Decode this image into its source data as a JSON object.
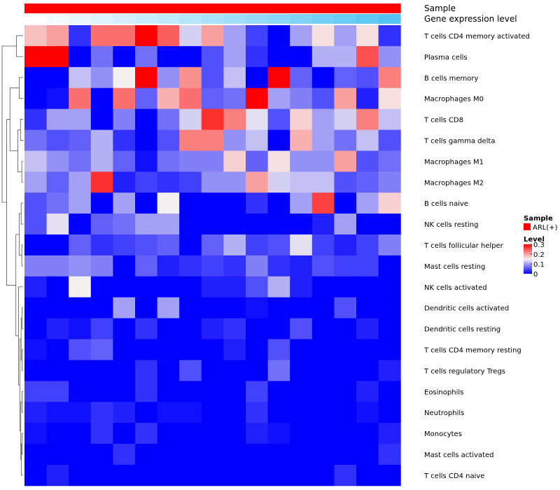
{
  "chart_data": {
    "type": "heatmap",
    "title": "",
    "annotation_tracks": [
      "Sample",
      "Gene expression level"
    ],
    "rows": [
      "T cells CD4 memory activated",
      "Plasma cells",
      "B cells memory",
      "Macrophages M0",
      "T cells CD8",
      "T cells gamma delta",
      "Macrophages M1",
      "Macrophages M2",
      "B cells naive",
      "NK cells resting",
      "T cells follicular helper",
      "Mast cells resting",
      "NK cells activated",
      "Dendritic cells activated",
      "Dendritic cells resting",
      "T cells CD4 memory resting",
      "T cells regulatory  Tregs",
      "Eosinophils",
      "Neutrophils",
      "Monocytes",
      "Mast cells activated",
      "T cells CD4 naive"
    ],
    "n_samples": 17,
    "values": [
      [
        0.18,
        0.2,
        0.03,
        0.23,
        0.23,
        0.3,
        0.24,
        0.13,
        0.2,
        0.1,
        0.04,
        0.0,
        0.1,
        0.16,
        0.1,
        0.16,
        0.03
      ],
      [
        0.3,
        0.3,
        0.0,
        0.07,
        0.0,
        0.07,
        0.0,
        0.0,
        0.05,
        0.1,
        0.03,
        0.0,
        0.0,
        0.11,
        0.11,
        0.25,
        0.09
      ],
      [
        0.0,
        0.0,
        0.12,
        0.09,
        0.15,
        0.3,
        0.09,
        0.21,
        0.05,
        0.12,
        0.0,
        0.3,
        0.06,
        0.0,
        0.06,
        0.05,
        0.22
      ],
      [
        0.0,
        0.01,
        0.23,
        0.0,
        0.23,
        0.06,
        0.19,
        0.23,
        0.06,
        0.07,
        0.3,
        0.1,
        0.08,
        0.05,
        0.2,
        0.02,
        0.16
      ],
      [
        0.03,
        0.1,
        0.1,
        0.0,
        0.08,
        0.0,
        0.07,
        0.13,
        0.27,
        0.22,
        0.14,
        0.05,
        0.17,
        0.1,
        0.13,
        0.22,
        0.12
      ],
      [
        0.07,
        0.05,
        0.06,
        0.11,
        0.03,
        0.0,
        0.05,
        0.22,
        0.22,
        0.09,
        0.12,
        0.0,
        0.19,
        0.1,
        0.07,
        0.12,
        0.05
      ],
      [
        0.12,
        0.09,
        0.07,
        0.11,
        0.06,
        0.01,
        0.07,
        0.08,
        0.08,
        0.17,
        0.06,
        0.16,
        0.09,
        0.09,
        0.2,
        0.05,
        0.07
      ],
      [
        0.1,
        0.06,
        0.1,
        0.27,
        0.02,
        0.04,
        0.03,
        0.04,
        0.09,
        0.09,
        0.2,
        0.13,
        0.12,
        0.12,
        0.05,
        0.06,
        0.08
      ],
      [
        0.05,
        0.07,
        0.1,
        0.0,
        0.1,
        0.0,
        0.15,
        0.0,
        0.0,
        0.0,
        0.03,
        0.0,
        0.1,
        0.26,
        0.0,
        0.1,
        0.17
      ],
      [
        0.05,
        0.14,
        0.0,
        0.06,
        0.07,
        0.1,
        0.1,
        0.0,
        0.0,
        0.0,
        0.0,
        0.0,
        0.0,
        0.02,
        0.1,
        0.0,
        0.0
      ],
      [
        0.0,
        0.0,
        0.06,
        0.03,
        0.04,
        0.05,
        0.06,
        0.0,
        0.06,
        0.11,
        0.04,
        0.05,
        0.14,
        0.04,
        0.02,
        0.04,
        0.08
      ],
      [
        0.08,
        0.08,
        0.09,
        0.08,
        0.0,
        0.06,
        0.02,
        0.03,
        0.04,
        0.03,
        0.08,
        0.03,
        0.02,
        0.05,
        0.04,
        0.04,
        0.0
      ],
      [
        0.02,
        0.0,
        0.15,
        0.0,
        0.0,
        0.0,
        0.0,
        0.0,
        0.02,
        0.02,
        0.05,
        0.11,
        0.02,
        0.0,
        0.0,
        0.0,
        0.0
      ],
      [
        0.0,
        0.0,
        0.0,
        0.0,
        0.1,
        0.0,
        0.1,
        0.0,
        0.0,
        0.0,
        0.01,
        0.0,
        0.0,
        0.0,
        0.05,
        0.0,
        0.0
      ],
      [
        0.0,
        0.02,
        0.01,
        0.04,
        0.0,
        0.03,
        0.0,
        0.0,
        0.02,
        0.03,
        0.0,
        0.0,
        0.05,
        0.0,
        0.0,
        0.02,
        0.0
      ],
      [
        0.01,
        0.0,
        0.05,
        0.06,
        0.0,
        0.0,
        0.0,
        0.0,
        0.0,
        0.02,
        0.0,
        0.05,
        0.0,
        0.0,
        0.0,
        0.0,
        0.0
      ],
      [
        0.0,
        0.0,
        0.0,
        0.0,
        0.0,
        0.03,
        0.0,
        0.05,
        0.0,
        0.0,
        0.0,
        0.07,
        0.0,
        0.0,
        0.0,
        0.0,
        0.02
      ],
      [
        0.04,
        0.04,
        0.0,
        0.0,
        0.0,
        0.03,
        0.0,
        0.0,
        0.0,
        0.0,
        0.04,
        0.0,
        0.0,
        0.0,
        0.0,
        0.02,
        0.0
      ],
      [
        0.02,
        0.01,
        0.01,
        0.03,
        0.02,
        0.0,
        0.01,
        0.01,
        0.0,
        0.0,
        0.03,
        0.0,
        0.0,
        0.0,
        0.0,
        0.01,
        0.0
      ],
      [
        0.01,
        0.0,
        0.0,
        0.03,
        0.0,
        0.03,
        0.0,
        0.0,
        0.0,
        0.0,
        0.02,
        0.01,
        0.0,
        0.0,
        0.0,
        0.0,
        0.02
      ],
      [
        0.0,
        0.0,
        0.0,
        0.0,
        0.03,
        0.0,
        0.0,
        0.0,
        0.0,
        0.0,
        0.0,
        0.0,
        0.0,
        0.0,
        0.0,
        0.0,
        0.03
      ],
      [
        0.0,
        0.02,
        0.0,
        0.0,
        0.0,
        0.0,
        0.0,
        0.0,
        0.0,
        0.0,
        0.0,
        0.0,
        0.0,
        0.0,
        0.03,
        0.0,
        0.0
      ]
    ],
    "sample_group": [
      "ARL(+)",
      "ARL(+)",
      "ARL(+)",
      "ARL(+)",
      "ARL(+)",
      "ARL(+)",
      "ARL(+)",
      "ARL(+)",
      "ARL(+)",
      "ARL(+)",
      "ARL(+)",
      "ARL(+)",
      "ARL(+)",
      "ARL(+)",
      "ARL(+)",
      "ARL(+)",
      "ARL(+)"
    ],
    "gene_expression_level": [
      0.0,
      0.06,
      0.12,
      0.18,
      0.25,
      0.31,
      0.37,
      0.43,
      0.5,
      0.56,
      0.62,
      0.68,
      0.75,
      0.81,
      0.87,
      0.93,
      1.0
    ],
    "legend": {
      "sample_title": "Sample",
      "sample_entries": [
        {
          "label": "ARL(+)",
          "color": "#ff0000"
        }
      ],
      "level_title": "Level",
      "level_ticks": [
        {
          "value": 0.3,
          "label": "0.3"
        },
        {
          "value": 0.2,
          "label": "0.2"
        },
        {
          "value": 0.1,
          "label": "0.1"
        },
        {
          "value": 0,
          "label": "0"
        }
      ],
      "placement": "right"
    },
    "color_scale": {
      "low": "#0000ff",
      "mid": "#f5f0f0",
      "high": "#ff0000",
      "min": 0,
      "mid_value": 0.15,
      "max": 0.3
    },
    "gene_level_colors": {
      "low": "#ffffff",
      "high": "#55c4f4"
    },
    "clustering": {
      "rows": true,
      "columns": false
    }
  }
}
